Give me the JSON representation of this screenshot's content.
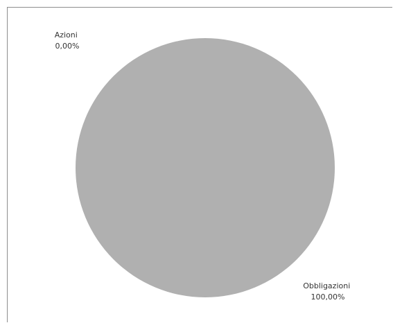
{
  "chart_data": {
    "type": "pie",
    "categories": [
      "Azioni",
      "Obbligazioni"
    ],
    "values": [
      0.0,
      100.0
    ],
    "value_labels": [
      "0,00%",
      "100,00%"
    ],
    "colors": [
      "#4f81bd",
      "#b0b0b0"
    ],
    "legend": "none",
    "title": ""
  }
}
